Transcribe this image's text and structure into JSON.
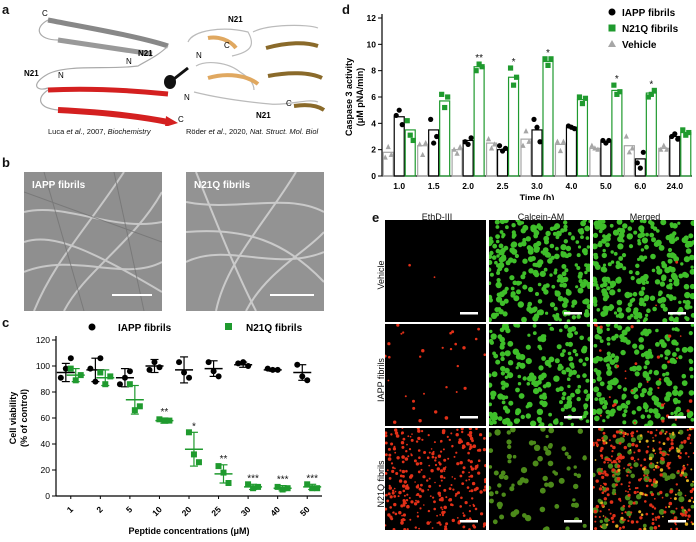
{
  "panel_a": {
    "label": "a",
    "left_struct": {
      "n21_top": "N21",
      "n21_left": "N21",
      "n_mid": "N",
      "n_red": "N",
      "c_top": "C",
      "c_red": "C"
    },
    "right_struct": {
      "n21_top": "N21",
      "n21_bottom": "N21",
      "c1": "C",
      "c2": "C",
      "n1": "N",
      "n2": "N"
    },
    "citation_left": {
      "authors": "Luca ",
      "etal": "et al",
      "rest": "., 2007, ",
      "journal": "Biochemistry"
    },
    "citation_right": {
      "authors": "Röder ",
      "etal": "et al",
      "rest": "., 2020, ",
      "journal": "Nat. Struct. Mol. Biol"
    }
  },
  "panel_b": {
    "label": "b",
    "images": [
      "IAPP fibrils",
      "N21Q fibrils"
    ]
  },
  "panel_c": {
    "label": "c",
    "legend": [
      "IAPP fibrils",
      "N21Q fibrils"
    ],
    "stars": [
      "**",
      "*",
      "**",
      "***",
      "***",
      "***"
    ]
  },
  "panel_d": {
    "label": "d",
    "legend": [
      "IAPP fibrils",
      "N21Q fibrils",
      "Vehicle"
    ],
    "stars": [
      "**",
      "*",
      "*",
      "*",
      "*"
    ]
  },
  "panel_e": {
    "label": "e",
    "columns": [
      "EthD-III",
      "Calcein-AM",
      "Merged"
    ],
    "rows": [
      "Vehicle",
      "IAPP fibrils",
      "N21Q fibrils"
    ]
  },
  "chart_data": [
    {
      "id": "c",
      "type": "scatter",
      "title": "",
      "xlabel": "Peptide concentrations (μM)",
      "ylabel": "Cell viability (% of control)",
      "ylim": [
        0,
        120
      ],
      "yticks": [
        0,
        20,
        40,
        60,
        80,
        100,
        120
      ],
      "categories": [
        "1",
        "2",
        "5",
        "10",
        "20",
        "25",
        "30",
        "40",
        "50"
      ],
      "series": [
        {
          "name": "IAPP fibrils",
          "color": "#000000",
          "marker": "circle",
          "mean": [
            95,
            97,
            91,
            100,
            97,
            98,
            101,
            97,
            95
          ],
          "sd": [
            7,
            9,
            7,
            5,
            10,
            6,
            2,
            1,
            6
          ],
          "points": [
            [
              91,
              98,
              106
            ],
            [
              98,
              88,
              106
            ],
            [
              86,
              91,
              96
            ],
            [
              97,
              103,
              99
            ],
            [
              103,
              95,
              91
            ],
            [
              103,
              96,
              92
            ],
            [
              102,
              103,
              100
            ],
            [
              98,
              97,
              97
            ],
            [
              101,
              92,
              89
            ]
          ]
        },
        {
          "name": "N21Q fibrils",
          "color": "#1f9a2e",
          "marker": "square",
          "mean": [
            93,
            91,
            74,
            58,
            36,
            17,
            7,
            6,
            7
          ],
          "sd": [
            5,
            6,
            11,
            2,
            13,
            7,
            2,
            2,
            2
          ],
          "points": [
            [
              98,
              89,
              93
            ],
            [
              95,
              86,
              92
            ],
            [
              86,
              66,
              69
            ],
            [
              59,
              58,
              58
            ],
            [
              49,
              32,
              26
            ],
            [
              23,
              18,
              10
            ],
            [
              9,
              6,
              7
            ],
            [
              7,
              5,
              6
            ],
            [
              9,
              6,
              6
            ]
          ]
        }
      ]
    },
    {
      "id": "d",
      "type": "bar",
      "title": "",
      "xlabel": "Time (h)",
      "ylabel": "Caspase 3 activity (μM pNA/min)",
      "ylim": [
        0,
        12
      ],
      "yticks": [
        0,
        2,
        4,
        6,
        8,
        10,
        12
      ],
      "categories": [
        "1.0",
        "1.5",
        "2.0",
        "2.5",
        "3.0",
        "4.0",
        "5.0",
        "6.0",
        "24.0"
      ],
      "series": [
        {
          "name": "Vehicle",
          "color": "#a6a6a6",
          "marker": "triangle",
          "values": [
            1.8,
            2.3,
            2.0,
            2.5,
            2.8,
            2.4,
            2.1,
            2.3,
            2.1
          ],
          "points": [
            [
              1.4,
              2.2,
              1.6
            ],
            [
              2.4,
              1.6,
              2.5
            ],
            [
              2.0,
              1.7,
              2.2
            ],
            [
              2.8,
              2.1,
              2.4
            ],
            [
              2.3,
              3.4,
              2.6
            ],
            [
              2.6,
              1.9,
              2.6
            ],
            [
              2.3,
              2.1,
              2.0
            ],
            [
              3.0,
              1.8,
              2.1
            ],
            [
              2.0,
              2.3,
              2.0
            ]
          ]
        },
        {
          "name": "IAPP fibrils",
          "color": "#000000",
          "marker": "circle",
          "values": [
            4.5,
            3.5,
            2.7,
            2.0,
            3.5,
            3.7,
            2.6,
            1.3,
            3.0
          ],
          "points": [
            [
              4.6,
              5.0,
              3.9
            ],
            [
              4.3,
              2.5,
              3.0
            ],
            [
              2.6,
              2.4,
              2.9
            ],
            [
              2.3,
              1.9,
              2.1
            ],
            [
              4.3,
              3.7,
              2.6
            ],
            [
              3.8,
              3.7,
              3.6
            ],
            [
              2.7,
              2.5,
              2.7
            ],
            [
              1.0,
              0.6,
              1.8
            ],
            [
              3.0,
              3.2,
              2.8
            ]
          ]
        },
        {
          "name": "N21Q fibrils",
          "color": "#1f9a2e",
          "marker": "square",
          "values": [
            3.5,
            5.7,
            8.3,
            7.5,
            8.7,
            5.8,
            6.5,
            6.3,
            3.3
          ],
          "points": [
            [
              4.2,
              3.1,
              2.7
            ],
            [
              6.2,
              5.2,
              6.0
            ],
            [
              8.0,
              8.5,
              8.3
            ],
            [
              8.2,
              6.9,
              7.5
            ],
            [
              8.9,
              8.4,
              8.9
            ],
            [
              6.0,
              5.5,
              5.9
            ],
            [
              6.9,
              6.2,
              6.4
            ],
            [
              6.0,
              6.2,
              6.5
            ],
            [
              3.5,
              3.1,
              3.3
            ]
          ]
        }
      ]
    }
  ]
}
